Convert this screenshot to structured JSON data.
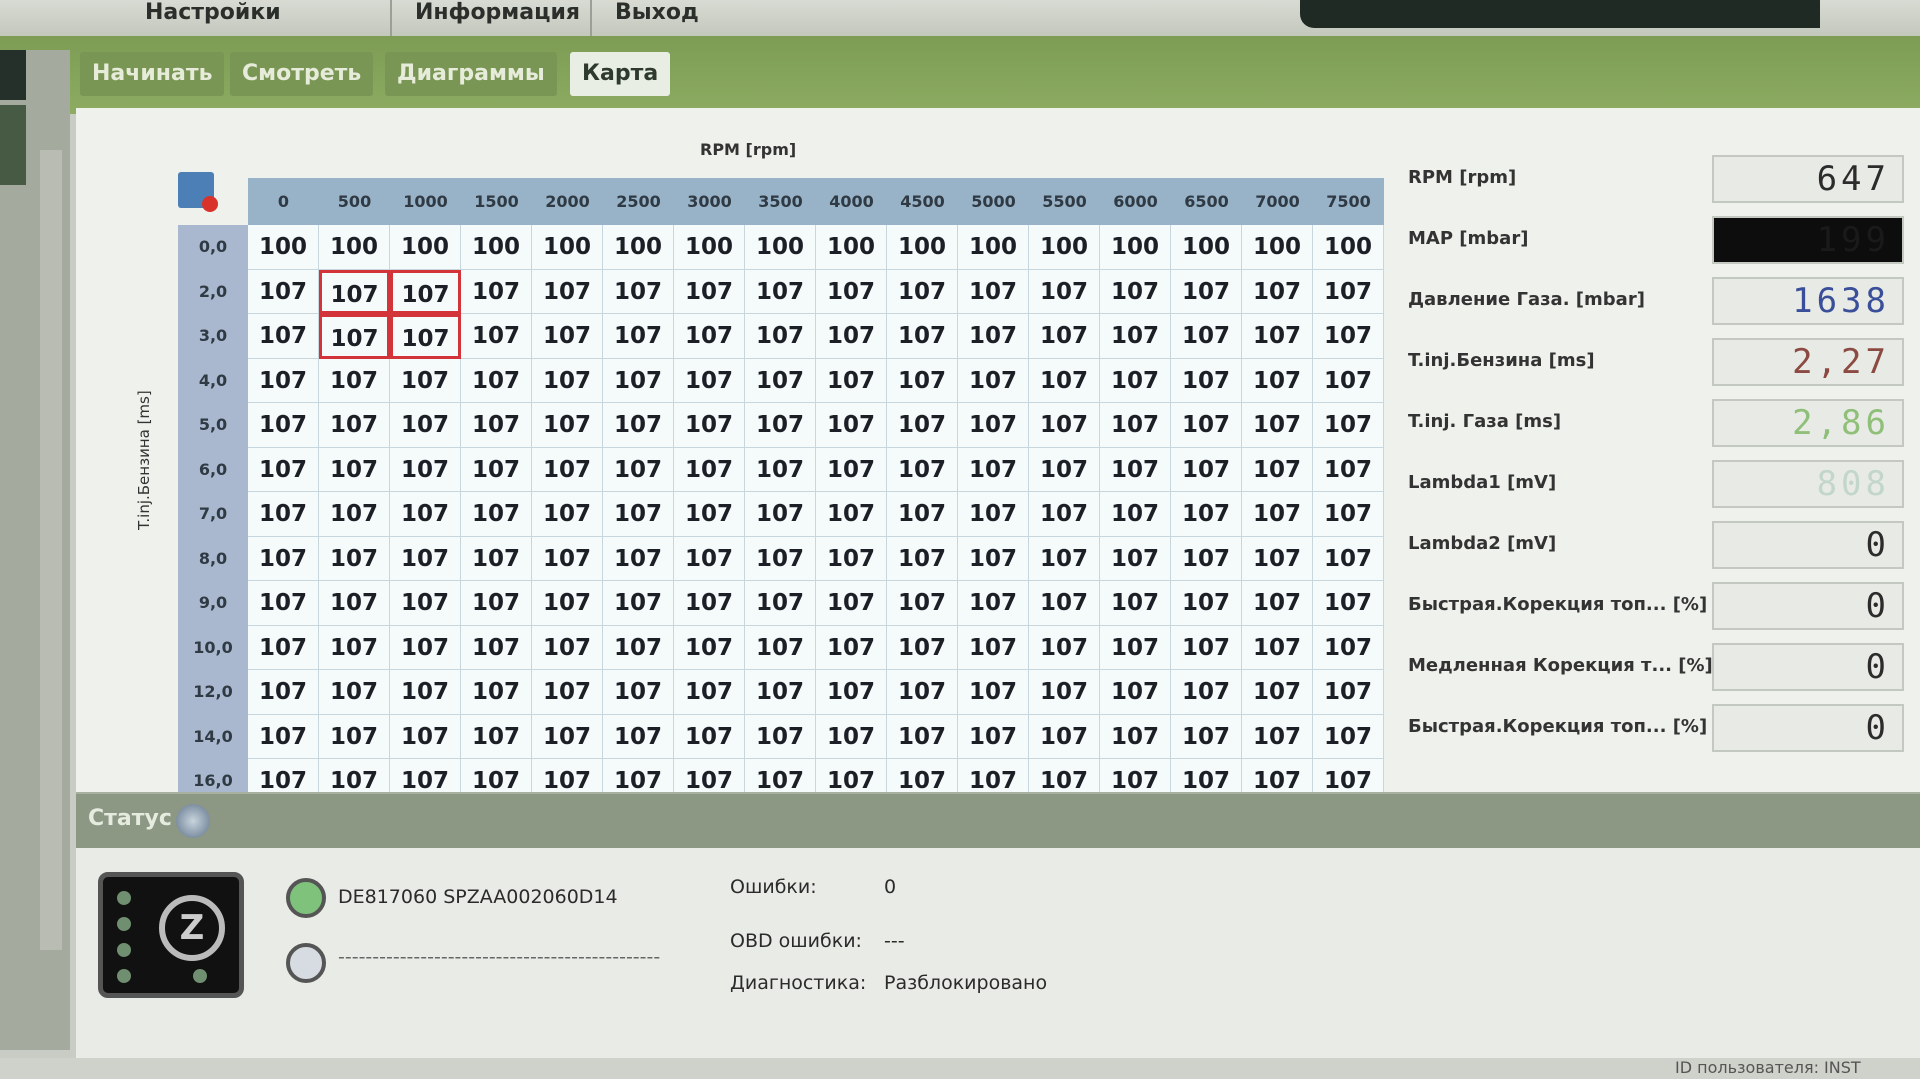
{
  "menu": {
    "settings": "Настройки",
    "info": "Информация",
    "exit": "Выход"
  },
  "tabs": [
    "Начинать",
    "Смотреть",
    "Диаграммы",
    "Карта"
  ],
  "active_tab": "Карта",
  "map": {
    "x_axis_label": "RPM [rpm]",
    "y_axis_label": "T.inj.Бензина [ms]",
    "columns": [
      "0",
      "500",
      "1000",
      "1500",
      "2000",
      "2500",
      "3000",
      "3500",
      "4000",
      "4500",
      "5000",
      "5500",
      "6000",
      "6500",
      "7000",
      "7500"
    ],
    "row_labels": [
      "0,0",
      "2,0",
      "3,0",
      "4,0",
      "5,0",
      "6,0",
      "7,0",
      "8,0",
      "9,0",
      "10,0",
      "12,0",
      "14,0",
      "16,0"
    ],
    "rows": [
      [
        100,
        100,
        100,
        100,
        100,
        100,
        100,
        100,
        100,
        100,
        100,
        100,
        100,
        100,
        100,
        100
      ],
      [
        107,
        107,
        107,
        107,
        107,
        107,
        107,
        107,
        107,
        107,
        107,
        107,
        107,
        107,
        107,
        107
      ],
      [
        107,
        107,
        107,
        107,
        107,
        107,
        107,
        107,
        107,
        107,
        107,
        107,
        107,
        107,
        107,
        107
      ],
      [
        107,
        107,
        107,
        107,
        107,
        107,
        107,
        107,
        107,
        107,
        107,
        107,
        107,
        107,
        107,
        107
      ],
      [
        107,
        107,
        107,
        107,
        107,
        107,
        107,
        107,
        107,
        107,
        107,
        107,
        107,
        107,
        107,
        107
      ],
      [
        107,
        107,
        107,
        107,
        107,
        107,
        107,
        107,
        107,
        107,
        107,
        107,
        107,
        107,
        107,
        107
      ],
      [
        107,
        107,
        107,
        107,
        107,
        107,
        107,
        107,
        107,
        107,
        107,
        107,
        107,
        107,
        107,
        107
      ],
      [
        107,
        107,
        107,
        107,
        107,
        107,
        107,
        107,
        107,
        107,
        107,
        107,
        107,
        107,
        107,
        107
      ],
      [
        107,
        107,
        107,
        107,
        107,
        107,
        107,
        107,
        107,
        107,
        107,
        107,
        107,
        107,
        107,
        107
      ],
      [
        107,
        107,
        107,
        107,
        107,
        107,
        107,
        107,
        107,
        107,
        107,
        107,
        107,
        107,
        107,
        107
      ],
      [
        107,
        107,
        107,
        107,
        107,
        107,
        107,
        107,
        107,
        107,
        107,
        107,
        107,
        107,
        107,
        107
      ],
      [
        107,
        107,
        107,
        107,
        107,
        107,
        107,
        107,
        107,
        107,
        107,
        107,
        107,
        107,
        107,
        107
      ],
      [
        107,
        107,
        107,
        107,
        107,
        107,
        107,
        107,
        107,
        107,
        107,
        107,
        107,
        107,
        107,
        107
      ]
    ],
    "selected_cells": [
      [
        1,
        1
      ],
      [
        1,
        2
      ],
      [
        2,
        1
      ],
      [
        2,
        2
      ]
    ],
    "selection_color": "#d2343a"
  },
  "readouts": [
    {
      "label": "RPM [rpm]",
      "value": "647",
      "color": "#2c2c2c",
      "bg": "#e8ebe5"
    },
    {
      "label": "MAP [mbar]",
      "value": "199",
      "color": "#1a1a1a",
      "bg": "#0d0d0d"
    },
    {
      "label": "Давление Газа. [mbar]",
      "value": "1638",
      "color": "#3a4f9a",
      "bg": "#e8ebe5"
    },
    {
      "label": "T.inj.Бензина [ms]",
      "value": "2,27",
      "color": "#8b4a42",
      "bg": "#e8ebe5"
    },
    {
      "label": "T.inj. Газа [ms]",
      "value": "2,86",
      "color": "#8fbf78",
      "bg": "#e8ebe5"
    },
    {
      "label": "Lambda1 [mV]",
      "value": "808",
      "color": "#c3d6cb",
      "bg": "#e8ebe5"
    },
    {
      "label": "Lambda2 [mV]",
      "value": "0",
      "color": "#2c2c2c",
      "bg": "#e8ebe5"
    },
    {
      "label": "Быстрая.Корекция топ... [%]",
      "value": "0",
      "color": "#2c2c2c",
      "bg": "#e8ebe5"
    },
    {
      "label": "Медленная Корекция т... [%]",
      "value": "0",
      "color": "#2c2c2c",
      "bg": "#e8ebe5"
    },
    {
      "label": "Быстрая.Корекция топ... [%]",
      "value": "0",
      "color": "#2c2c2c",
      "bg": "#e8ebe5"
    }
  ],
  "status": {
    "title": "Статус",
    "device1": "DE817060 SPZAA002060D14",
    "device2": "-----------------------------------------------",
    "errors_label": "Ошибки:",
    "errors_value": "0",
    "obd_label": "OBD ошибки:",
    "obd_value": "---",
    "diag_label": "Диагностика:",
    "diag_value": "Разблокировано"
  },
  "footer": {
    "user": "ID пользователя: INST"
  }
}
